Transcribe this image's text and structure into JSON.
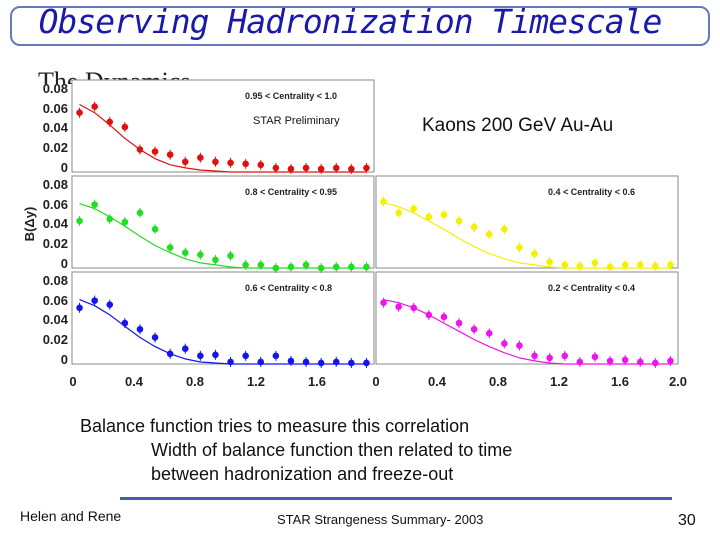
{
  "title": "Observing Hadronization Timescale",
  "partial_text": "The Dynamics",
  "annotations": {
    "preliminary": "STAR Preliminary",
    "system": "Kaons 200 GeV Au-Au"
  },
  "body": {
    "line1": "Balance function tries to measure this correlation",
    "line2": "Width of balance function then related to time",
    "line3": "between hadronization and freeze-out"
  },
  "footer": {
    "authors": "Helen and Rene",
    "talk": "STAR Strangeness Summary- 2003",
    "page": "30"
  },
  "chart_data": {
    "type": "scatter",
    "ylabel": "B(Δy)",
    "xlabel": "",
    "y_ticks": [
      "0.08",
      "0.06",
      "0.04",
      "0.02",
      "0"
    ],
    "x_ticks_left": [
      "0",
      "0.4",
      "0.8",
      "1.2",
      "1.6",
      "0"
    ],
    "x_ticks_right": [
      "0.4",
      "0.8",
      "1.2",
      "1.6",
      "2.0"
    ],
    "panels": [
      {
        "title": "0.95 < Centrality < 1.0",
        "color": "#e01010",
        "xlim": [
          0,
          2.0
        ],
        "ylim": [
          0,
          0.09
        ],
        "x": [
          0.05,
          0.15,
          0.25,
          0.35,
          0.45,
          0.55,
          0.65,
          0.75,
          0.85,
          0.95,
          1.05,
          1.15,
          1.25,
          1.35,
          1.45,
          1.55,
          1.65,
          1.75,
          1.85,
          1.95
        ],
        "y": [
          0.058,
          0.064,
          0.049,
          0.044,
          0.022,
          0.02,
          0.017,
          0.01,
          0.014,
          0.01,
          0.009,
          0.008,
          0.007,
          0.004,
          0.003,
          0.004,
          0.003,
          0.004,
          0.003,
          0.004
        ],
        "fit": [
          0.066,
          0.058,
          0.046,
          0.033,
          0.022,
          0.013,
          0.007,
          0.004,
          0.002,
          0.001,
          0.0,
          0.0,
          0.0,
          0.0,
          0.0,
          0.0,
          0.0,
          0.0,
          0.0,
          0.0
        ]
      },
      {
        "title": "0.8 < Centrality < 0.95",
        "color": "#22dd22",
        "xlim": [
          0,
          2.0
        ],
        "ylim": [
          0,
          0.09
        ],
        "x": [
          0.05,
          0.15,
          0.25,
          0.35,
          0.45,
          0.55,
          0.65,
          0.75,
          0.85,
          0.95,
          1.05,
          1.15,
          1.25,
          1.35,
          1.45,
          1.55,
          1.65,
          1.75,
          1.85,
          1.95
        ],
        "y": [
          0.046,
          0.062,
          0.048,
          0.045,
          0.054,
          0.038,
          0.02,
          0.015,
          0.013,
          0.008,
          0.012,
          0.003,
          0.003,
          0.0,
          0.001,
          0.003,
          0.0,
          0.001,
          0.001,
          0.001
        ],
        "fit": [
          0.063,
          0.058,
          0.05,
          0.041,
          0.031,
          0.022,
          0.015,
          0.009,
          0.005,
          0.003,
          0.001,
          0.0,
          0.0,
          0.0,
          0.0,
          0.0,
          0.0,
          0.0,
          0.0,
          0.0
        ]
      },
      {
        "title": "0.4 < Centrality < 0.6",
        "color": "#f5f000",
        "xlim": [
          0,
          2.0
        ],
        "ylim": [
          0,
          0.09
        ],
        "x": [
          0.05,
          0.15,
          0.25,
          0.35,
          0.45,
          0.55,
          0.65,
          0.75,
          0.85,
          0.95,
          1.05,
          1.15,
          1.25,
          1.35,
          1.45,
          1.55,
          1.65,
          1.75,
          1.85,
          1.95
        ],
        "y": [
          0.065,
          0.054,
          0.058,
          0.05,
          0.052,
          0.046,
          0.04,
          0.033,
          0.038,
          0.02,
          0.014,
          0.006,
          0.003,
          0.002,
          0.005,
          0.001,
          0.003,
          0.003,
          0.002,
          0.003
        ],
        "fit": [
          0.064,
          0.06,
          0.054,
          0.046,
          0.038,
          0.029,
          0.021,
          0.014,
          0.009,
          0.005,
          0.003,
          0.001,
          0.0,
          0.0,
          0.0,
          0.0,
          0.0,
          0.0,
          0.0,
          0.0
        ]
      },
      {
        "title": "0.6 < Centrality < 0.8",
        "color": "#1414ee",
        "xlim": [
          0,
          2.0
        ],
        "ylim": [
          0,
          0.09
        ],
        "x": [
          0.05,
          0.15,
          0.25,
          0.35,
          0.45,
          0.55,
          0.65,
          0.75,
          0.85,
          0.95,
          1.05,
          1.15,
          1.25,
          1.35,
          1.45,
          1.55,
          1.65,
          1.75,
          1.85,
          1.95
        ],
        "y": [
          0.055,
          0.062,
          0.058,
          0.04,
          0.034,
          0.026,
          0.01,
          0.015,
          0.008,
          0.009,
          0.002,
          0.008,
          0.002,
          0.008,
          0.003,
          0.002,
          0.001,
          0.002,
          0.001,
          0.001
        ],
        "fit": [
          0.063,
          0.057,
          0.048,
          0.037,
          0.026,
          0.017,
          0.01,
          0.005,
          0.002,
          0.001,
          0.0,
          0.0,
          0.0,
          0.0,
          0.0,
          0.0,
          0.0,
          0.0,
          0.0,
          0.0
        ]
      },
      {
        "title": "0.2 < Centrality < 0.4",
        "color": "#ee14ee",
        "xlim": [
          0,
          2.0
        ],
        "ylim": [
          0,
          0.09
        ],
        "x": [
          0.05,
          0.15,
          0.25,
          0.35,
          0.45,
          0.55,
          0.65,
          0.75,
          0.85,
          0.95,
          1.05,
          1.15,
          1.25,
          1.35,
          1.45,
          1.55,
          1.65,
          1.75,
          1.85,
          1.95
        ],
        "y": [
          0.06,
          0.056,
          0.055,
          0.048,
          0.046,
          0.04,
          0.034,
          0.03,
          0.02,
          0.018,
          0.008,
          0.006,
          0.008,
          0.002,
          0.007,
          0.003,
          0.004,
          0.002,
          0.001,
          0.003
        ],
        "fit": [
          0.063,
          0.06,
          0.055,
          0.048,
          0.04,
          0.032,
          0.024,
          0.017,
          0.011,
          0.006,
          0.003,
          0.001,
          0.0,
          0.0,
          0.0,
          0.0,
          0.0,
          0.0,
          0.0,
          0.0
        ]
      }
    ]
  }
}
